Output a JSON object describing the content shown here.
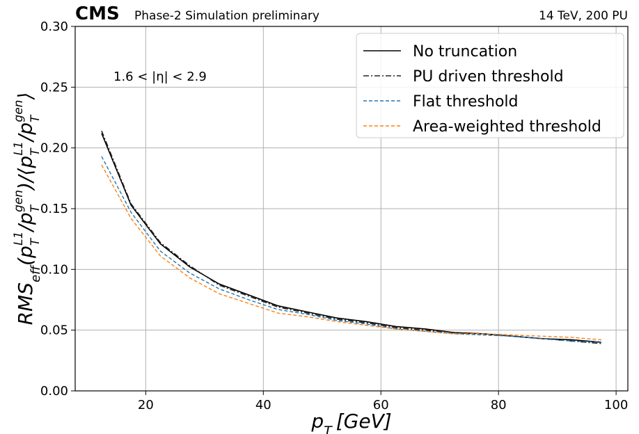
{
  "header": {
    "experiment": "CMS",
    "status": "Phase-2 Simulation preliminary",
    "conditions": "14 TeV, 200 PU"
  },
  "chart_data": {
    "type": "line",
    "xlabel": "p_T [GeV]",
    "ylabel": "RMS_eff(p_T^L1/p_T^gen)/⟨p_T^L1/p_T^gen⟩",
    "xlim": [
      8,
      102
    ],
    "ylim": [
      0.0,
      0.3
    ],
    "xticks": [
      20,
      40,
      60,
      80,
      100
    ],
    "yticks": [
      0.0,
      0.05,
      0.1,
      0.15,
      0.2,
      0.25,
      0.3
    ],
    "grid": true,
    "legend_position": "top-right",
    "annotation": "1.6 < |η| < 2.9",
    "x": [
      12.5,
      17.5,
      22.5,
      27.5,
      32.5,
      37.5,
      42.5,
      47.5,
      52.5,
      57.5,
      62.5,
      67.5,
      72.5,
      77.5,
      82.5,
      87.5,
      92.5,
      97.5
    ],
    "series": [
      {
        "name": "No truncation",
        "color": "#000000",
        "dash": "solid",
        "values": [
          0.212,
          0.153,
          0.121,
          0.102,
          0.088,
          0.079,
          0.07,
          0.065,
          0.06,
          0.057,
          0.053,
          0.051,
          0.048,
          0.047,
          0.045,
          0.043,
          0.042,
          0.04
        ]
      },
      {
        "name": "PU driven threshold",
        "color": "#222222",
        "dash": "dashdot",
        "values": [
          0.214,
          0.154,
          0.122,
          0.103,
          0.087,
          0.078,
          0.069,
          0.064,
          0.059,
          0.056,
          0.052,
          0.05,
          0.048,
          0.047,
          0.045,
          0.043,
          0.041,
          0.039
        ]
      },
      {
        "name": "Flat threshold",
        "color": "#1f77b4",
        "dash": "dashed",
        "values": [
          0.193,
          0.147,
          0.115,
          0.097,
          0.084,
          0.075,
          0.067,
          0.063,
          0.058,
          0.055,
          0.051,
          0.049,
          0.047,
          0.046,
          0.045,
          0.043,
          0.041,
          0.04
        ]
      },
      {
        "name": "Area-weighted threshold",
        "color": "#ff7f0e",
        "dash": "dashed",
        "values": [
          0.186,
          0.142,
          0.111,
          0.093,
          0.08,
          0.072,
          0.064,
          0.061,
          0.057,
          0.054,
          0.051,
          0.049,
          0.047,
          0.047,
          0.046,
          0.045,
          0.044,
          0.042
        ]
      }
    ]
  }
}
